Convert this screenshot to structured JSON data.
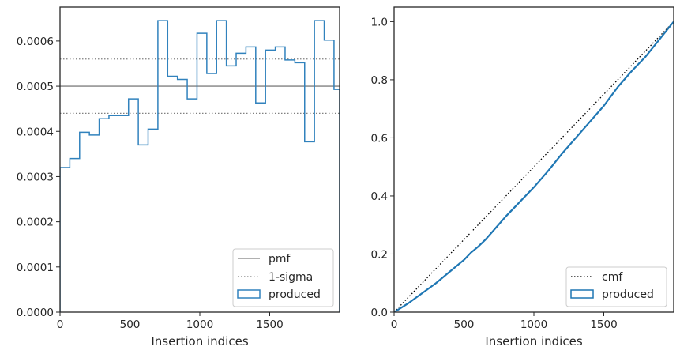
{
  "chart_data": [
    {
      "type": "histogram",
      "xlabel": "Insertion indices",
      "ylabel": "",
      "xlim": [
        0,
        2000
      ],
      "ylim": [
        0,
        0.000675
      ],
      "xticks": [
        0,
        500,
        1000,
        1500
      ],
      "xtick_labels": [
        "0",
        "500",
        "1000",
        "1500"
      ],
      "yticks": [
        0,
        0.0001,
        0.0002,
        0.0003,
        0.0004,
        0.0005,
        0.0006
      ],
      "ytick_labels": [
        "0.0000",
        "0.0001",
        "0.0002",
        "0.0003",
        "0.0004",
        "0.0005",
        "0.0006"
      ],
      "grid": false,
      "legend_position": "lower-right",
      "pmf": {
        "name": "pmf",
        "value": 0.0005,
        "color": "#808080"
      },
      "sigma": {
        "name": "1-sigma",
        "values": [
          0.00044,
          0.00056
        ],
        "color": "#808080"
      },
      "produced": {
        "name": "produced",
        "color": "#3182bd",
        "bin_edges": [
          0,
          70,
          140,
          210,
          280,
          350,
          420,
          490,
          560,
          630,
          700,
          770,
          840,
          910,
          980,
          1050,
          1120,
          1190,
          1260,
          1330,
          1400,
          1470,
          1540,
          1610,
          1680,
          1750,
          1820,
          1890,
          1960,
          2000
        ],
        "values": [
          0.00032,
          0.00034,
          0.000398,
          0.000392,
          0.000428,
          0.000435,
          0.000435,
          0.000472,
          0.00037,
          0.000405,
          0.000645,
          0.000522,
          0.000515,
          0.000472,
          0.000617,
          0.000528,
          0.000645,
          0.000545,
          0.000573,
          0.000587,
          0.000463,
          0.00058,
          0.000587,
          0.000558,
          0.000552,
          0.000377,
          0.000645,
          0.000602,
          0.000493
        ]
      }
    },
    {
      "type": "line",
      "xlabel": "Insertion indices",
      "ylabel": "",
      "xlim": [
        0,
        2000
      ],
      "ylim": [
        0,
        1.05
      ],
      "xticks": [
        0,
        500,
        1000,
        1500
      ],
      "xtick_labels": [
        "0",
        "500",
        "1000",
        "1500"
      ],
      "yticks": [
        0,
        0.2,
        0.4,
        0.6,
        0.8,
        1.0
      ],
      "ytick_labels": [
        "0.0",
        "0.2",
        "0.4",
        "0.6",
        "0.8",
        "1.0"
      ],
      "grid": false,
      "legend_position": "lower-right",
      "cmf": {
        "name": "cmf",
        "x": [
          0,
          2000
        ],
        "y": [
          0,
          1.0
        ],
        "color": "#000000"
      },
      "produced": {
        "name": "produced",
        "color": "#1f77b4",
        "x": [
          0,
          100,
          200,
          300,
          400,
          500,
          550,
          600,
          650,
          700,
          800,
          900,
          1000,
          1100,
          1200,
          1300,
          1400,
          1500,
          1600,
          1700,
          1800,
          1900,
          2000
        ],
        "y": [
          0,
          0.03,
          0.065,
          0.1,
          0.14,
          0.18,
          0.205,
          0.225,
          0.248,
          0.275,
          0.33,
          0.38,
          0.43,
          0.485,
          0.545,
          0.6,
          0.655,
          0.71,
          0.775,
          0.83,
          0.88,
          0.94,
          1.0
        ]
      }
    }
  ]
}
